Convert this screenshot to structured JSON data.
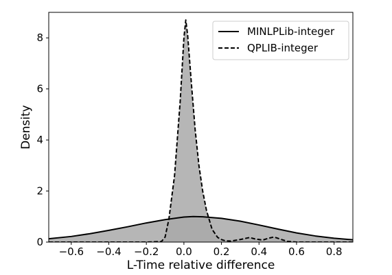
{
  "chart_data": {
    "type": "area",
    "title": "",
    "xlabel": "L-Time relative difference",
    "ylabel": "Density",
    "xlim": [
      -0.72,
      0.9
    ],
    "ylim": [
      0,
      9.0
    ],
    "xticks": [
      -0.6,
      -0.4,
      -0.2,
      0.0,
      0.2,
      0.4,
      0.6,
      0.8
    ],
    "xtick_labels": [
      "−0.6",
      "−0.4",
      "−0.2",
      "0.0",
      "0.2",
      "0.4",
      "0.6",
      "0.8"
    ],
    "yticks": [
      0,
      2,
      4,
      6,
      8
    ],
    "ytick_labels": [
      "0",
      "2",
      "4",
      "6",
      "8"
    ],
    "grid": false,
    "legend_position": "top-right",
    "series": [
      {
        "name": "MINLPLib-integer",
        "line_style": "solid",
        "fill_color": "#a9a9a9",
        "x": [
          -0.72,
          -0.6,
          -0.5,
          -0.4,
          -0.3,
          -0.2,
          -0.1,
          0.0,
          0.05,
          0.1,
          0.2,
          0.3,
          0.4,
          0.5,
          0.6,
          0.7,
          0.8,
          0.9
        ],
        "y": [
          0.13,
          0.22,
          0.33,
          0.46,
          0.6,
          0.75,
          0.88,
          0.98,
          1.0,
          0.99,
          0.93,
          0.82,
          0.67,
          0.51,
          0.36,
          0.24,
          0.15,
          0.09
        ]
      },
      {
        "name": "QPLIB-integer",
        "line_style": "dashed",
        "fill_color": "#a9a9a9",
        "x": [
          -0.72,
          -0.2,
          -0.12,
          -0.1,
          -0.08,
          -0.05,
          -0.02,
          0.0,
          0.01,
          0.02,
          0.04,
          0.06,
          0.08,
          0.1,
          0.12,
          0.15,
          0.18,
          0.2,
          0.22,
          0.25,
          0.3,
          0.35,
          0.38,
          0.42,
          0.45,
          0.48,
          0.52,
          0.55,
          0.6,
          0.9
        ],
        "y": [
          0,
          0,
          0.02,
          0.2,
          0.9,
          2.6,
          5.5,
          8.0,
          8.7,
          8.1,
          6.2,
          4.4,
          3.0,
          2.0,
          1.25,
          0.5,
          0.18,
          0.1,
          0.05,
          0.04,
          0.1,
          0.18,
          0.12,
          0.08,
          0.15,
          0.2,
          0.1,
          0.03,
          0,
          0
        ]
      }
    ]
  }
}
